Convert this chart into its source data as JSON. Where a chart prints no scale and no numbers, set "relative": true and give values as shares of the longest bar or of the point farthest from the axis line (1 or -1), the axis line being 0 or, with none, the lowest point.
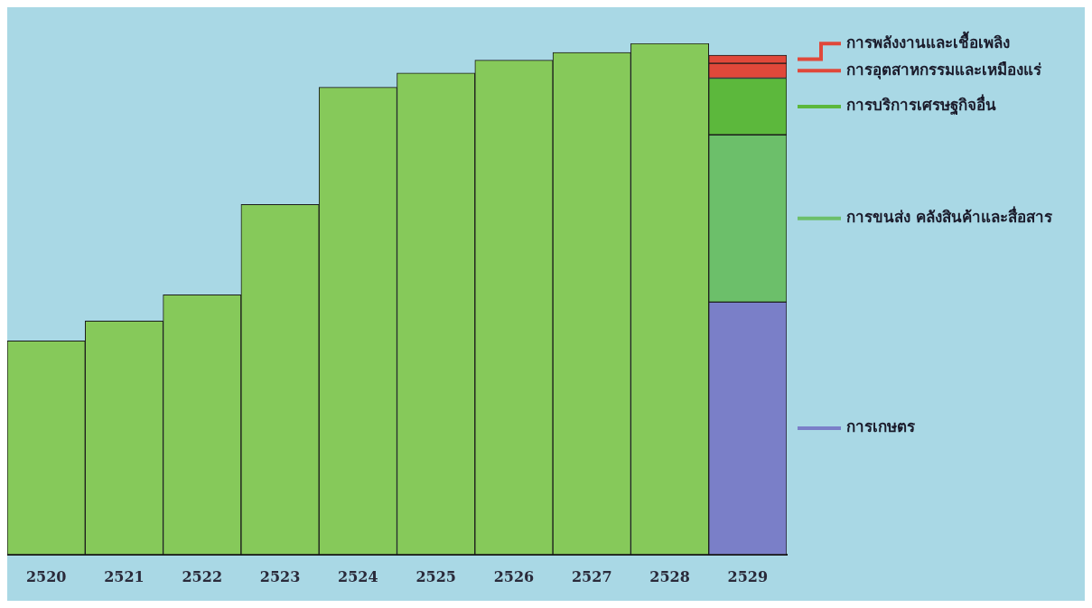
{
  "chart_data": {
    "type": "bar",
    "relative": true,
    "stacked": true,
    "legend": "right",
    "grid": false,
    "categories": [
      "2520",
      "2521",
      "2522",
      "2523",
      "2524",
      "2525",
      "2526",
      "2527",
      "2528",
      "2529"
    ],
    "series": [
      {
        "color": "#86c95a",
        "values": [
          0.418,
          0.457,
          0.508,
          0.685,
          0.914,
          0.942,
          0.967,
          0.982,
          1,
          null
        ]
      },
      {
        "name": "การเกษตร",
        "color": "#7a7fc8",
        "values": [
          null,
          null,
          null,
          null,
          null,
          null,
          null,
          null,
          null,
          0.494
        ]
      },
      {
        "name": "การขนส่ง คลังสินค้าและสื่อสาร",
        "color": "#6cbf6a",
        "values": [
          null,
          null,
          null,
          null,
          null,
          null,
          null,
          null,
          null,
          0.327
        ]
      },
      {
        "name": "การบริการเศรษฐกิจอื่น",
        "color": "#5cb83c",
        "values": [
          null,
          null,
          null,
          null,
          null,
          null,
          null,
          null,
          null,
          0.111
        ]
      },
      {
        "name": "การอุตสาหกรรมและเหมืองแร่",
        "color": "#e0483a",
        "values": [
          null,
          null,
          null,
          null,
          null,
          null,
          null,
          null,
          null,
          0.029
        ]
      },
      {
        "name": "การพลังงานและเชื้อเพลิง",
        "color": "#e0483a",
        "values": [
          null,
          null,
          null,
          null,
          null,
          null,
          null,
          null,
          null,
          0.016
        ]
      }
    ]
  }
}
